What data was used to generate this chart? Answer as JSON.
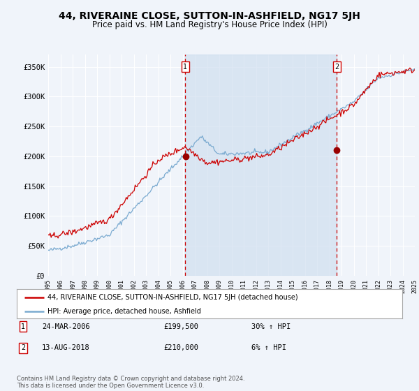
{
  "title": "44, RIVERAINE CLOSE, SUTTON-IN-ASHFIELD, NG17 5JH",
  "subtitle": "Price paid vs. HM Land Registry's House Price Index (HPI)",
  "title_fontsize": 10,
  "subtitle_fontsize": 8.5,
  "bg_color": "#f0f4fa",
  "plot_bg_color": "#f0f4fa",
  "fill_bg_color": "#d0dff0",
  "grid_color": "#ffffff",
  "sale1_year": 2006.22,
  "sale1_price": 199500,
  "sale2_year": 2018.62,
  "sale2_price": 210000,
  "ylim": [
    0,
    370000
  ],
  "yticks": [
    0,
    50000,
    100000,
    150000,
    200000,
    250000,
    300000,
    350000
  ],
  "ytick_labels": [
    "£0",
    "£50K",
    "£100K",
    "£150K",
    "£200K",
    "£250K",
    "£300K",
    "£350K"
  ],
  "legend_label_red": "44, RIVERAINE CLOSE, SUTTON-IN-ASHFIELD, NG17 5JH (detached house)",
  "legend_label_blue": "HPI: Average price, detached house, Ashfield",
  "annotation1_date": "24-MAR-2006",
  "annotation1_price": "£199,500",
  "annotation1_hpi": "30% ↑ HPI",
  "annotation2_date": "13-AUG-2018",
  "annotation2_price": "£210,000",
  "annotation2_hpi": "6% ↑ HPI",
  "footer": "Contains HM Land Registry data © Crown copyright and database right 2024.\nThis data is licensed under the Open Government Licence v3.0.",
  "red_color": "#cc0000",
  "blue_color": "#7aaad0",
  "dashed_color": "#cc0000",
  "marker_color": "#990000"
}
